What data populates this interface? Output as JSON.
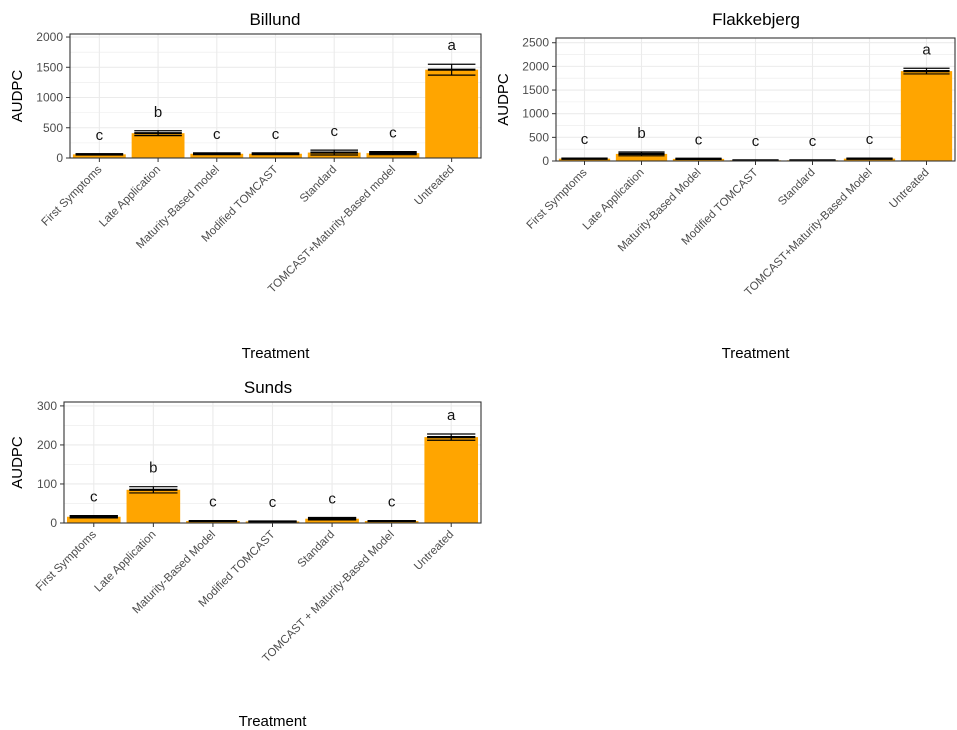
{
  "colors": {
    "bar": "#ffa500",
    "grid": "#ebebeb",
    "frame": "#333333",
    "error": "#000000"
  },
  "chart_data": [
    {
      "type": "bar",
      "title": "Billund",
      "xlabel": "Treatment",
      "ylabel": "AUDPC",
      "ylim": [
        0,
        2050
      ],
      "yticks": [
        0,
        500,
        1000,
        1500,
        2000
      ],
      "categories": [
        "First Symptoms",
        "Late Application",
        "Maturity-Based model",
        "Modified TOMCAST",
        "Standard",
        "TOMCAST+Maturity-Based model",
        "Untreated"
      ],
      "values": [
        60,
        410,
        70,
        70,
        90,
        80,
        1460
      ],
      "errors": [
        10,
        40,
        15,
        15,
        40,
        25,
        90
      ],
      "letters": [
        "c",
        "b",
        "c",
        "c",
        "c",
        "c",
        "a"
      ],
      "grid": true
    },
    {
      "type": "bar",
      "title": "Flakkebjerg",
      "xlabel": "Treatment",
      "ylabel": "AUDPC",
      "ylim": [
        0,
        2600
      ],
      "yticks": [
        0,
        500,
        1000,
        1500,
        2000,
        2500
      ],
      "categories": [
        "First Symptoms",
        "Late Application",
        "Maturity-Based Model",
        "Modified TOMCAST",
        "Standard",
        "TOMCAST+Maturity-Based Model",
        "Untreated"
      ],
      "values": [
        50,
        150,
        45,
        15,
        15,
        50,
        1900
      ],
      "errors": [
        10,
        40,
        10,
        5,
        5,
        10,
        60
      ],
      "letters": [
        "c",
        "b",
        "c",
        "c",
        "c",
        "c",
        "a"
      ],
      "grid": true
    },
    {
      "type": "bar",
      "title": "Sunds",
      "xlabel": "Treatment",
      "ylabel": "AUDPC",
      "ylim": [
        0,
        310
      ],
      "yticks": [
        0,
        100,
        200,
        300
      ],
      "categories": [
        "First Symptoms",
        "Late Application",
        "Maturity-Based Model",
        "Modified TOMCAST",
        "Standard",
        "TOMCAST + Maturity-Based Model",
        "Untreated"
      ],
      "values": [
        16,
        85,
        5,
        4,
        11,
        5,
        220
      ],
      "errors": [
        3,
        8,
        1,
        1,
        3,
        1,
        8
      ],
      "letters": [
        "c",
        "b",
        "c",
        "c",
        "c",
        "c",
        "a"
      ],
      "grid": true
    }
  ]
}
